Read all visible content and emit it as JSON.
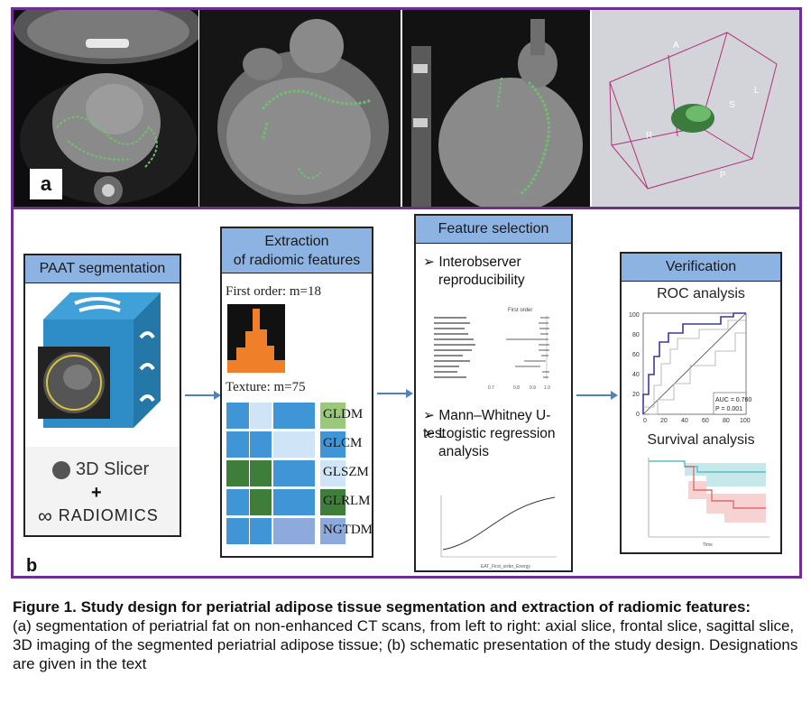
{
  "panel_a": {
    "label": "a",
    "views": [
      "axial slice",
      "frontal slice",
      "sagittal slice",
      "3D imaging"
    ],
    "orientation_letters": {
      "a": "A",
      "l": "L",
      "s": "S",
      "r": "R",
      "p": "P"
    }
  },
  "panel_b": {
    "label": "b",
    "segmentation": {
      "title": "PAAT segmentation",
      "slicer_logo": "3D Slicer",
      "plus": "+",
      "radiomics_logo": "RADIOMICS"
    },
    "extraction": {
      "title_line1": "Extraction",
      "title_line2": "of radiomic features",
      "first_order": "First order: m=18",
      "texture": "Texture: m=75",
      "texture_classes": [
        "GLDM",
        "GLCM",
        "GLSZM",
        "GLRLM",
        "NGTDM"
      ]
    },
    "selection": {
      "title": "Feature selection",
      "item1_line1": "Interobserver",
      "item1_line2": "reproducibility",
      "item2": "Mann–Whitney U-test",
      "item3_line1": "Logistic regression",
      "item3_line2": "analysis",
      "forest_title": "First order"
    },
    "verification": {
      "title": "Verification",
      "roc_title": "ROC analysis",
      "auc": "AUC = 0.760",
      "p": "P = 0.001",
      "roc_ticks_y": [
        "100",
        "80",
        "60",
        "40",
        "20",
        "0"
      ],
      "roc_ticks_x": [
        "0",
        "20",
        "40",
        "60",
        "80",
        "100"
      ],
      "survival_title": "Survival analysis"
    }
  },
  "caption": {
    "title": "Figure 1. Study design for periatrial adipose tissue segmentation and extraction of radiomic features:",
    "body": "(a) segmentation of periatrial fat on non-enhanced CT scans, from left to right: axial slice, frontal slice, sagittal slice, 3D imaging of the segmented periatrial adipose tissue; (b) schematic presentation of the study design. Designations are given in the text"
  },
  "colors": {
    "frame": "#6f2f91",
    "box_header": "#8db3e2",
    "arrow": "#4f81bd",
    "histogram": "#f07f2a",
    "segmentation": "#58a858",
    "roc_curve": "#3a3a9a",
    "km_teal": "#5bbdc4",
    "km_red": "#e06b6b"
  }
}
